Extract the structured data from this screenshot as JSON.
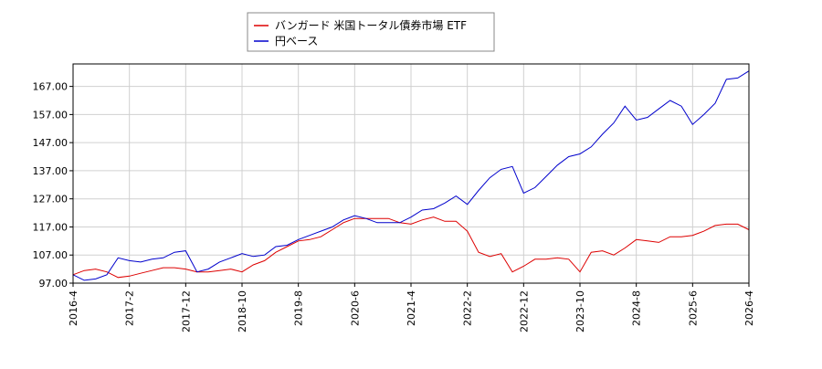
{
  "chart_data": {
    "type": "line",
    "categories": [
      "2016-4",
      null,
      null,
      null,
      null,
      "2017-2",
      null,
      null,
      null,
      null,
      "2017-12",
      null,
      null,
      null,
      null,
      "2018-10",
      null,
      null,
      null,
      null,
      "2019-8",
      null,
      null,
      null,
      null,
      "2020-6",
      null,
      null,
      null,
      null,
      "2021-4",
      null,
      null,
      null,
      null,
      "2022-2",
      null,
      null,
      null,
      null,
      "2022-12",
      null,
      null,
      null,
      null,
      "2023-10",
      null,
      null,
      null,
      null,
      "2024-8",
      null,
      null,
      null,
      null,
      "2025-6",
      null,
      null,
      null,
      null,
      "2026-4"
    ],
    "series": [
      {
        "name": "バンガード 米国トータル債券市場 ETF",
        "color": "#dd0000",
        "values": [
          100,
          101.5,
          102,
          101,
          99,
          99.5,
          100.5,
          101.5,
          102.5,
          102.5,
          102,
          101,
          101,
          101.5,
          102,
          101,
          103.5,
          105,
          108,
          110,
          112,
          112.5,
          113.5,
          116,
          118.5,
          120,
          120,
          120,
          120,
          118.5,
          118,
          119.5,
          120.5,
          119,
          119,
          115.5,
          108,
          106.5,
          107.5,
          101,
          103,
          105.5,
          105.5,
          106,
          105.5,
          101,
          108,
          108.5,
          107,
          109.5,
          112.5,
          112,
          111.5,
          113.5,
          113.5,
          114,
          115.5,
          117.5,
          118,
          118,
          116
        ]
      },
      {
        "name": "円ベース",
        "color": "#0000cc",
        "values": [
          100,
          98,
          98.5,
          100,
          106,
          105,
          104.5,
          105.5,
          106,
          108,
          108.5,
          101,
          102,
          104.5,
          106,
          107.5,
          106.5,
          107,
          110,
          110.5,
          112.5,
          114,
          115.5,
          117,
          119.5,
          121,
          120,
          118.5,
          118.5,
          118.5,
          120.5,
          123,
          123.5,
          125.5,
          128,
          125,
          130,
          134.5,
          137.5,
          138.5,
          129,
          131,
          135,
          139,
          142,
          143,
          145.5,
          150,
          154,
          160,
          155,
          156,
          159,
          162,
          160,
          153.5,
          157,
          161,
          169.5,
          170,
          172.5
        ]
      }
    ],
    "ylim": [
      97,
      175
    ],
    "yticks": [
      {
        "value": 97,
        "label": "97.00"
      },
      {
        "value": 107,
        "label": "107.00"
      },
      {
        "value": 117,
        "label": "117.00"
      },
      {
        "value": 127,
        "label": "127.00"
      },
      {
        "value": 137,
        "label": "137.00"
      },
      {
        "value": 147,
        "label": "147.00"
      },
      {
        "value": 157,
        "label": "157.00"
      },
      {
        "value": 167,
        "label": "167.00"
      }
    ],
    "grid": true
  }
}
